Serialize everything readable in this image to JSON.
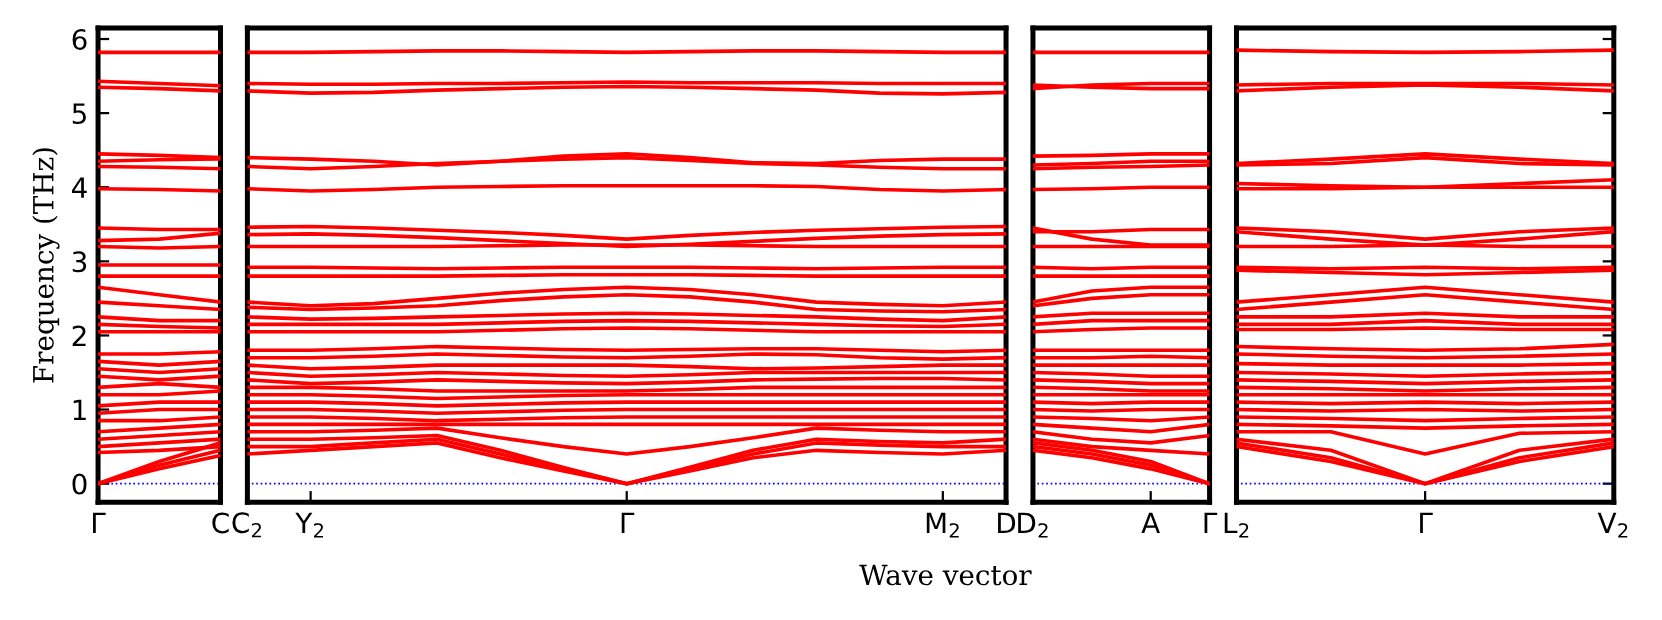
{
  "chart_data": [
    {
      "type": "line",
      "ylabel": "Frequency (THz)",
      "color": "#ff0000",
      "line_style": "solid",
      "marker": "none",
      "grid": false,
      "legend": false,
      "categories": [
        "Γ",
        null,
        "C"
      ],
      "ylim": [
        -0.25,
        6.15
      ],
      "yticks": [
        0,
        1,
        2,
        3,
        4,
        5,
        6
      ],
      "ref_lines": [
        {
          "axis": "y",
          "value": 0,
          "color": "#0000ff",
          "line_style": "dotted"
        }
      ],
      "series": [
        {
          "values": [
            0,
            0.2,
            0.38
          ]
        },
        {
          "values": [
            0,
            0.25,
            0.45
          ]
        },
        {
          "values": [
            0,
            0.3,
            0.55
          ]
        },
        {
          "values": [
            0.42,
            0.45,
            0.5
          ]
        },
        {
          "values": [
            0.5,
            0.55,
            0.6
          ]
        },
        {
          "values": [
            0.6,
            0.65,
            0.7
          ]
        },
        {
          "values": [
            0.7,
            0.75,
            0.8
          ]
        },
        {
          "values": [
            0.85,
            0.85,
            0.9
          ]
        },
        {
          "values": [
            0.95,
            1.0,
            1.0
          ]
        },
        {
          "values": [
            1.05,
            1.1,
            1.1
          ]
        },
        {
          "values": [
            1.2,
            1.2,
            1.25
          ]
        },
        {
          "values": [
            1.3,
            1.35,
            1.3
          ]
        },
        {
          "values": [
            1.45,
            1.4,
            1.45
          ]
        },
        {
          "values": [
            1.55,
            1.5,
            1.55
          ]
        },
        {
          "values": [
            1.65,
            1.6,
            1.65
          ]
        },
        {
          "values": [
            1.75,
            1.75,
            1.78
          ]
        },
        {
          "values": [
            2.05,
            2.05,
            2.05
          ]
        },
        {
          "values": [
            2.15,
            2.12,
            2.1
          ]
        },
        {
          "values": [
            2.25,
            2.2,
            2.2
          ]
        },
        {
          "values": [
            2.45,
            2.4,
            2.35
          ]
        },
        {
          "values": [
            2.65,
            2.55,
            2.45
          ]
        },
        {
          "values": [
            2.8,
            2.8,
            2.8
          ]
        },
        {
          "values": [
            2.95,
            2.95,
            2.95
          ]
        },
        {
          "values": [
            3.2,
            3.18,
            3.2
          ]
        },
        {
          "values": [
            3.28,
            3.3,
            3.38
          ]
        },
        {
          "values": [
            3.45,
            3.43,
            3.43
          ]
        },
        {
          "values": [
            3.98,
            3.97,
            3.95
          ]
        },
        {
          "values": [
            4.28,
            4.27,
            4.25
          ]
        },
        {
          "values": [
            4.35,
            4.37,
            4.38
          ]
        },
        {
          "values": [
            4.45,
            4.43,
            4.4
          ]
        },
        {
          "values": [
            5.35,
            5.33,
            5.3
          ]
        },
        {
          "values": [
            5.43,
            5.4,
            5.37
          ]
        },
        {
          "values": [
            5.82,
            5.82,
            5.82
          ]
        }
      ]
    },
    {
      "type": "line",
      "xlabel": "Wave vector",
      "color": "#ff0000",
      "line_style": "solid",
      "marker": "none",
      "grid": false,
      "legend": false,
      "tick_labels": "x",
      "categories": [
        "C$_{2}$",
        "Y$_{2}$",
        null,
        null,
        null,
        null,
        "Γ",
        null,
        null,
        null,
        null,
        "M$_{2}$",
        "D"
      ],
      "ylim": [
        -0.25,
        6.15
      ],
      "yticks": [
        0,
        1,
        2,
        3,
        4,
        5,
        6
      ],
      "ref_lines": [
        {
          "axis": "y",
          "value": 0,
          "color": "#0000ff",
          "line_style": "dotted"
        }
      ],
      "series": [
        {
          "values": [
            5.82,
            5.82,
            5.83,
            5.84,
            5.84,
            5.83,
            5.82,
            5.83,
            5.84,
            5.84,
            5.83,
            5.82,
            5.82
          ]
        },
        {
          "values": [
            5.3,
            5.27,
            5.28,
            5.31,
            5.33,
            5.35,
            5.36,
            5.35,
            5.33,
            5.31,
            5.27,
            5.26,
            5.28
          ]
        },
        {
          "values": [
            5.4,
            5.39,
            5.39,
            5.4,
            5.4,
            5.41,
            5.42,
            5.41,
            5.41,
            5.41,
            5.4,
            5.4,
            5.4
          ]
        },
        {
          "values": [
            4.4,
            4.38,
            4.35,
            4.3,
            4.35,
            4.42,
            4.45,
            4.4,
            4.33,
            4.32,
            4.36,
            4.38,
            4.38
          ]
        },
        {
          "values": [
            4.28,
            4.25,
            4.28,
            4.32,
            4.35,
            4.38,
            4.4,
            4.36,
            4.32,
            4.3,
            4.27,
            4.25,
            4.25
          ]
        },
        {
          "values": [
            3.98,
            3.95,
            3.97,
            4.0,
            4.01,
            4.02,
            4.02,
            4.02,
            4.02,
            4.01,
            3.97,
            3.95,
            3.97
          ]
        },
        {
          "values": [
            3.46,
            3.47,
            3.45,
            3.42,
            3.39,
            3.35,
            3.3,
            3.35,
            3.39,
            3.42,
            3.44,
            3.46,
            3.47
          ]
        },
        {
          "values": [
            3.36,
            3.37,
            3.35,
            3.32,
            3.28,
            3.24,
            3.2,
            3.23,
            3.27,
            3.31,
            3.34,
            3.36,
            3.37
          ]
        },
        {
          "values": [
            3.2,
            3.2,
            3.2,
            3.2,
            3.21,
            3.22,
            3.22,
            3.22,
            3.21,
            3.2,
            3.2,
            3.2,
            3.2
          ]
        },
        {
          "values": [
            2.92,
            2.92,
            2.91,
            2.9,
            2.91,
            2.92,
            2.92,
            2.92,
            2.91,
            2.9,
            2.91,
            2.92,
            2.92
          ]
        },
        {
          "values": [
            2.8,
            2.8,
            2.8,
            2.8,
            2.81,
            2.82,
            2.82,
            2.82,
            2.81,
            2.8,
            2.8,
            2.8,
            2.8
          ]
        },
        {
          "values": [
            2.45,
            2.4,
            2.43,
            2.5,
            2.57,
            2.62,
            2.65,
            2.62,
            2.55,
            2.45,
            2.42,
            2.4,
            2.45
          ]
        },
        {
          "values": [
            2.38,
            2.35,
            2.37,
            2.4,
            2.47,
            2.52,
            2.55,
            2.52,
            2.45,
            2.35,
            2.33,
            2.32,
            2.35
          ]
        },
        {
          "values": [
            2.25,
            2.22,
            2.23,
            2.25,
            2.27,
            2.29,
            2.3,
            2.29,
            2.27,
            2.25,
            2.22,
            2.2,
            2.25
          ]
        },
        {
          "values": [
            2.15,
            2.15,
            2.15,
            2.15,
            2.17,
            2.19,
            2.2,
            2.19,
            2.17,
            2.15,
            2.13,
            2.12,
            2.15
          ]
        },
        {
          "values": [
            2.05,
            2.05,
            2.05,
            2.05,
            2.07,
            2.09,
            2.1,
            2.09,
            2.07,
            2.05,
            2.05,
            2.05,
            2.05
          ]
        },
        {
          "values": [
            1.8,
            1.8,
            1.82,
            1.85,
            1.83,
            1.81,
            1.8,
            1.81,
            1.82,
            1.82,
            1.8,
            1.78,
            1.8
          ]
        },
        {
          "values": [
            1.7,
            1.7,
            1.72,
            1.75,
            1.73,
            1.71,
            1.7,
            1.72,
            1.75,
            1.74,
            1.7,
            1.68,
            1.7
          ]
        },
        {
          "values": [
            1.6,
            1.55,
            1.57,
            1.6,
            1.6,
            1.6,
            1.6,
            1.58,
            1.55,
            1.56,
            1.58,
            1.6,
            1.6
          ]
        },
        {
          "values": [
            1.5,
            1.45,
            1.47,
            1.5,
            1.48,
            1.46,
            1.45,
            1.47,
            1.5,
            1.5,
            1.5,
            1.5,
            1.5
          ]
        },
        {
          "values": [
            1.4,
            1.35,
            1.37,
            1.4,
            1.38,
            1.36,
            1.35,
            1.37,
            1.4,
            1.41,
            1.42,
            1.42,
            1.4
          ]
        },
        {
          "values": [
            1.3,
            1.3,
            1.28,
            1.25,
            1.25,
            1.25,
            1.25,
            1.27,
            1.3,
            1.3,
            1.3,
            1.3,
            1.3
          ]
        },
        {
          "values": [
            1.2,
            1.2,
            1.18,
            1.15,
            1.17,
            1.19,
            1.2,
            1.2,
            1.2,
            1.2,
            1.2,
            1.2,
            1.2
          ]
        },
        {
          "values": [
            1.1,
            1.1,
            1.08,
            1.05,
            1.07,
            1.09,
            1.1,
            1.1,
            1.1,
            1.1,
            1.1,
            1.1,
            1.1
          ]
        },
        {
          "values": [
            1.0,
            1.0,
            0.98,
            0.95,
            0.97,
            0.99,
            1.0,
            1.0,
            1.0,
            1.0,
            1.0,
            1.0,
            1.0
          ]
        },
        {
          "values": [
            0.9,
            0.9,
            0.88,
            0.85,
            0.87,
            0.89,
            0.9,
            0.9,
            0.9,
            0.9,
            0.9,
            0.9,
            0.9
          ]
        },
        {
          "values": [
            0.8,
            0.8,
            0.8,
            0.8,
            0.8,
            0.8,
            0.8,
            0.8,
            0.8,
            0.8,
            0.8,
            0.8,
            0.8
          ]
        },
        {
          "values": [
            0.7,
            0.7,
            0.72,
            0.75,
            0.62,
            0.5,
            0.4,
            0.5,
            0.62,
            0.75,
            0.72,
            0.7,
            0.7
          ]
        },
        {
          "values": [
            0.6,
            0.6,
            0.62,
            0.65,
            0.45,
            0.22,
            0,
            0.22,
            0.45,
            0.6,
            0.57,
            0.55,
            0.6
          ]
        },
        {
          "values": [
            0.5,
            0.5,
            0.55,
            0.6,
            0.4,
            0.2,
            0,
            0.2,
            0.4,
            0.55,
            0.52,
            0.5,
            0.5
          ]
        },
        {
          "values": [
            0.4,
            0.45,
            0.5,
            0.55,
            0.35,
            0.17,
            0,
            0.17,
            0.35,
            0.45,
            0.42,
            0.4,
            0.45
          ]
        }
      ]
    },
    {
      "type": "line",
      "color": "#ff0000",
      "line_style": "solid",
      "marker": "none",
      "grid": false,
      "legend": false,
      "tick_labels": "x",
      "categories": [
        "D$_{2}$",
        null,
        "A",
        "Γ"
      ],
      "ylim": [
        -0.25,
        6.15
      ],
      "yticks": [
        0,
        1,
        2,
        3,
        4,
        5,
        6
      ],
      "ref_lines": [
        {
          "axis": "y",
          "value": 0,
          "color": "#0000ff",
          "line_style": "dotted"
        }
      ],
      "series": [
        {
          "values": [
            5.82,
            5.82,
            5.82,
            5.82
          ]
        },
        {
          "values": [
            5.33,
            5.38,
            5.4,
            5.4
          ]
        },
        {
          "values": [
            5.38,
            5.35,
            5.33,
            5.33
          ]
        },
        {
          "values": [
            4.42,
            4.43,
            4.45,
            4.45
          ]
        },
        {
          "values": [
            4.3,
            4.32,
            4.35,
            4.35
          ]
        },
        {
          "values": [
            4.25,
            4.27,
            4.28,
            4.3
          ]
        },
        {
          "values": [
            3.97,
            3.98,
            4.0,
            4.0
          ]
        },
        {
          "values": [
            3.45,
            3.3,
            3.22,
            3.22
          ]
        },
        {
          "values": [
            3.4,
            3.4,
            3.43,
            3.43
          ]
        },
        {
          "values": [
            3.2,
            3.2,
            3.2,
            3.2
          ]
        },
        {
          "values": [
            2.92,
            2.9,
            2.92,
            2.92
          ]
        },
        {
          "values": [
            2.8,
            2.8,
            2.8,
            2.8
          ]
        },
        {
          "values": [
            2.45,
            2.6,
            2.65,
            2.65
          ]
        },
        {
          "values": [
            2.4,
            2.5,
            2.55,
            2.55
          ]
        },
        {
          "values": [
            2.25,
            2.3,
            2.3,
            2.3
          ]
        },
        {
          "values": [
            2.15,
            2.2,
            2.2,
            2.2
          ]
        },
        {
          "values": [
            2.05,
            2.08,
            2.1,
            2.1
          ]
        },
        {
          "values": [
            1.8,
            1.8,
            1.8,
            1.8
          ]
        },
        {
          "values": [
            1.7,
            1.7,
            1.72,
            1.7
          ]
        },
        {
          "values": [
            1.6,
            1.6,
            1.6,
            1.6
          ]
        },
        {
          "values": [
            1.5,
            1.48,
            1.45,
            1.45
          ]
        },
        {
          "values": [
            1.4,
            1.38,
            1.35,
            1.35
          ]
        },
        {
          "values": [
            1.3,
            1.28,
            1.25,
            1.25
          ]
        },
        {
          "values": [
            1.2,
            1.2,
            1.2,
            1.2
          ]
        },
        {
          "values": [
            1.1,
            1.08,
            1.1,
            1.1
          ]
        },
        {
          "values": [
            1.0,
            0.98,
            1.0,
            1.0
          ]
        },
        {
          "values": [
            0.9,
            0.88,
            0.85,
            0.9
          ]
        },
        {
          "values": [
            0.8,
            0.75,
            0.7,
            0.8
          ]
        },
        {
          "values": [
            0.7,
            0.6,
            0.55,
            0.65
          ]
        },
        {
          "values": [
            0.6,
            0.5,
            0.45,
            0.4
          ]
        },
        {
          "values": [
            0.55,
            0.45,
            0.3,
            0
          ]
        },
        {
          "values": [
            0.5,
            0.4,
            0.25,
            0
          ]
        },
        {
          "values": [
            0.45,
            0.35,
            0.2,
            0
          ]
        }
      ]
    },
    {
      "type": "line",
      "color": "#ff0000",
      "line_style": "solid",
      "marker": "none",
      "grid": false,
      "legend": false,
      "tick_labels": "x",
      "categories": [
        "L$_{2}$",
        null,
        "Γ",
        null,
        "V$_{2}$"
      ],
      "ylim": [
        -0.25,
        6.15
      ],
      "yticks": [
        0,
        1,
        2,
        3,
        4,
        5,
        6
      ],
      "ref_lines": [
        {
          "axis": "y",
          "value": 0,
          "color": "#0000ff",
          "line_style": "dotted"
        }
      ],
      "series": [
        {
          "values": [
            5.85,
            5.83,
            5.82,
            5.83,
            5.85
          ]
        },
        {
          "values": [
            5.38,
            5.4,
            5.4,
            5.4,
            5.38
          ]
        },
        {
          "values": [
            5.3,
            5.35,
            5.38,
            5.35,
            5.3
          ]
        },
        {
          "values": [
            4.32,
            4.38,
            4.45,
            4.38,
            4.32
          ]
        },
        {
          "values": [
            4.3,
            4.32,
            4.4,
            4.32,
            4.3
          ]
        },
        {
          "values": [
            4.05,
            4.02,
            4.0,
            4.05,
            4.1
          ]
        },
        {
          "values": [
            3.98,
            3.98,
            4.0,
            4.0,
            4.0
          ]
        },
        {
          "values": [
            3.45,
            3.4,
            3.3,
            3.4,
            3.45
          ]
        },
        {
          "values": [
            3.4,
            3.3,
            3.22,
            3.3,
            3.4
          ]
        },
        {
          "values": [
            3.2,
            3.2,
            3.22,
            3.2,
            3.2
          ]
        },
        {
          "values": [
            2.92,
            2.9,
            2.92,
            2.9,
            2.92
          ]
        },
        {
          "values": [
            2.88,
            2.85,
            2.82,
            2.85,
            2.88
          ]
        },
        {
          "values": [
            2.45,
            2.55,
            2.65,
            2.55,
            2.45
          ]
        },
        {
          "values": [
            2.35,
            2.45,
            2.55,
            2.45,
            2.35
          ]
        },
        {
          "values": [
            2.25,
            2.25,
            2.3,
            2.25,
            2.25
          ]
        },
        {
          "values": [
            2.15,
            2.15,
            2.2,
            2.15,
            2.15
          ]
        },
        {
          "values": [
            2.08,
            2.08,
            2.1,
            2.08,
            2.08
          ]
        },
        {
          "values": [
            1.85,
            1.82,
            1.8,
            1.82,
            1.88
          ]
        },
        {
          "values": [
            1.75,
            1.72,
            1.7,
            1.72,
            1.75
          ]
        },
        {
          "values": [
            1.62,
            1.6,
            1.6,
            1.6,
            1.62
          ]
        },
        {
          "values": [
            1.5,
            1.48,
            1.45,
            1.48,
            1.5
          ]
        },
        {
          "values": [
            1.4,
            1.38,
            1.35,
            1.38,
            1.4
          ]
        },
        {
          "values": [
            1.3,
            1.28,
            1.25,
            1.28,
            1.3
          ]
        },
        {
          "values": [
            1.2,
            1.2,
            1.2,
            1.2,
            1.2
          ]
        },
        {
          "values": [
            1.1,
            1.08,
            1.1,
            1.08,
            1.1
          ]
        },
        {
          "values": [
            1.0,
            0.98,
            1.0,
            0.98,
            1.0
          ]
        },
        {
          "values": [
            0.9,
            0.88,
            0.85,
            0.88,
            0.9
          ]
        },
        {
          "values": [
            0.8,
            0.78,
            0.75,
            0.78,
            0.8
          ]
        },
        {
          "values": [
            0.7,
            0.7,
            0.4,
            0.68,
            0.7
          ]
        },
        {
          "values": [
            0.6,
            0.45,
            0,
            0.45,
            0.6
          ]
        },
        {
          "values": [
            0.55,
            0.35,
            0,
            0.35,
            0.55
          ]
        },
        {
          "values": [
            0.5,
            0.3,
            0,
            0.3,
            0.5
          ]
        }
      ]
    }
  ]
}
